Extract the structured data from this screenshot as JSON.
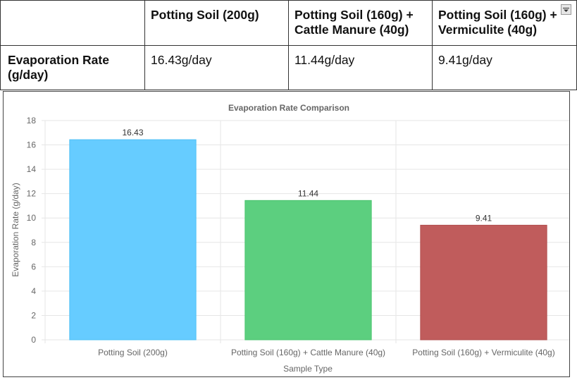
{
  "table": {
    "headers": [
      "",
      "Potting Soil (200g)",
      "Potting Soil (160g) +\nCattle Manure (40g)",
      "Potting Soil (160g) +\nVermiculite (40g)"
    ],
    "rows": [
      {
        "label": "Evaporation Rate\n(g/day)",
        "values": [
          "16.43g/day",
          "11.44g/day",
          "9.41g/day"
        ]
      }
    ],
    "filter_icon": "dropdown-arrow-icon"
  },
  "chart_data": {
    "type": "bar",
    "title": "Evaporation Rate Comparison",
    "xlabel": "Sample Type",
    "ylabel": "Evaporation Rate (g/day)",
    "categories": [
      "Potting Soil (200g)",
      "Potting Soil (160g) + Cattle Manure (40g)",
      "Potting Soil (160g) + Vermiculite (40g)"
    ],
    "values": [
      16.43,
      11.44,
      9.41
    ],
    "data_labels": [
      "16.43",
      "11.44",
      "9.41"
    ],
    "ylim": [
      0,
      18
    ],
    "yticks": [
      0,
      2,
      4,
      6,
      8,
      10,
      12,
      14,
      16,
      18
    ],
    "grid": true,
    "legend": "none",
    "colors": {
      "bar_fills": [
        "#66ccff",
        "#5ccf7f",
        "#c05c5c"
      ],
      "bar_borders": [
        "#4fc0f5",
        "#4dc570",
        "#b24f4f"
      ],
      "grid": "#e6e6e6"
    }
  }
}
